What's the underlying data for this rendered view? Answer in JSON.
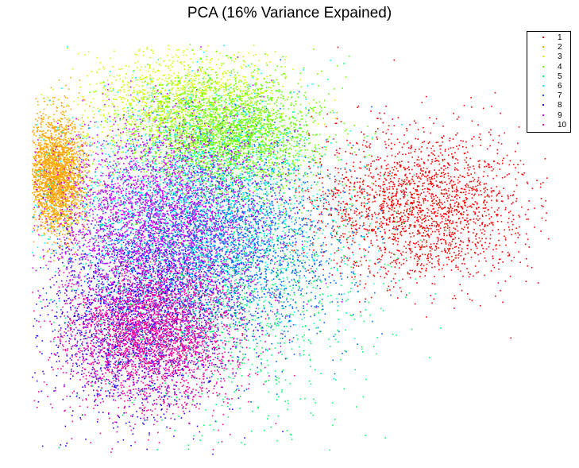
{
  "chart_data": {
    "type": "scatter",
    "title": "PCA (16% Variance Expained)",
    "xlabel": "",
    "ylabel": "",
    "axes_visible": false,
    "grid": false,
    "legend_position": "top-right",
    "series": [
      {
        "name": "1",
        "color": "#ff0000",
        "center": [
          530,
          260
        ],
        "spread": [
          68,
          48
        ],
        "n": 2200
      },
      {
        "name": "2",
        "color": "#ffa500",
        "center": [
          70,
          220
        ],
        "spread": [
          18,
          35
        ],
        "n": 2600
      },
      {
        "name": "3",
        "color": "#ccff00",
        "center": [
          230,
          130
        ],
        "spread": [
          60,
          35
        ],
        "n": 1500
      },
      {
        "name": "4",
        "color": "#66ff00",
        "center": [
          290,
          170
        ],
        "spread": [
          55,
          35
        ],
        "n": 2600
      },
      {
        "name": "5",
        "color": "#00ff66",
        "center": [
          290,
          350
        ],
        "spread": [
          90,
          90
        ],
        "n": 1500
      },
      {
        "name": "6",
        "color": "#00ffff",
        "center": [
          240,
          260
        ],
        "spread": [
          85,
          70
        ],
        "n": 2000
      },
      {
        "name": "7",
        "color": "#0066ff",
        "center": [
          270,
          310
        ],
        "spread": [
          80,
          65
        ],
        "n": 3000
      },
      {
        "name": "8",
        "color": "#3300ff",
        "center": [
          170,
          400
        ],
        "spread": [
          55,
          60
        ],
        "n": 2200
      },
      {
        "name": "9",
        "color": "#cc00ff",
        "center": [
          200,
          270
        ],
        "spread": [
          70,
          60
        ],
        "n": 3000
      },
      {
        "name": "10",
        "color": "#ff0099",
        "center": [
          190,
          420
        ],
        "spread": [
          55,
          45
        ],
        "n": 2800
      }
    ]
  }
}
